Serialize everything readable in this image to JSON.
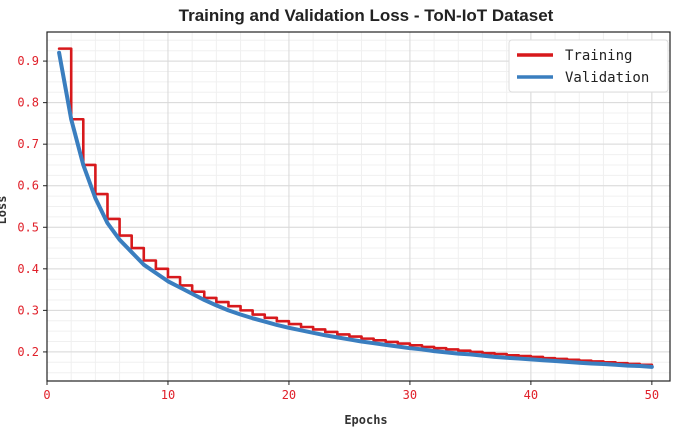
{
  "chart_data": {
    "type": "line",
    "title": "Training and Validation Loss - ToN-IoT Dataset",
    "xlabel": "Epochs",
    "ylabel": "Loss",
    "xlim": [
      0,
      51.5
    ],
    "ylim": [
      0.13,
      0.97
    ],
    "xticks": [
      0,
      10,
      20,
      30,
      40,
      50
    ],
    "yticks": [
      0.2,
      0.3,
      0.4,
      0.5,
      0.6,
      0.7,
      0.8,
      0.9
    ],
    "grid": true,
    "legend_position": "top-right",
    "series": [
      {
        "name": "Training",
        "color": "#d7191c",
        "step": true,
        "x": [
          1,
          2,
          3,
          4,
          5,
          6,
          7,
          8,
          9,
          10,
          11,
          12,
          13,
          14,
          15,
          16,
          17,
          18,
          19,
          20,
          21,
          22,
          23,
          24,
          25,
          26,
          27,
          28,
          29,
          30,
          31,
          32,
          33,
          34,
          35,
          36,
          37,
          38,
          39,
          40,
          41,
          42,
          43,
          44,
          45,
          46,
          47,
          48,
          49,
          50
        ],
        "values": [
          0.93,
          0.76,
          0.65,
          0.58,
          0.52,
          0.48,
          0.45,
          0.42,
          0.4,
          0.38,
          0.36,
          0.345,
          0.33,
          0.32,
          0.31,
          0.3,
          0.29,
          0.282,
          0.274,
          0.267,
          0.26,
          0.254,
          0.248,
          0.242,
          0.237,
          0.232,
          0.228,
          0.224,
          0.22,
          0.216,
          0.212,
          0.209,
          0.206,
          0.203,
          0.2,
          0.197,
          0.195,
          0.192,
          0.19,
          0.188,
          0.185,
          0.183,
          0.181,
          0.179,
          0.177,
          0.175,
          0.173,
          0.171,
          0.169,
          0.167
        ]
      },
      {
        "name": "Validation",
        "color": "#3a7ebf",
        "step": false,
        "x": [
          1,
          2,
          3,
          4,
          5,
          6,
          7,
          8,
          9,
          10,
          11,
          12,
          13,
          14,
          15,
          16,
          17,
          18,
          19,
          20,
          21,
          22,
          23,
          24,
          25,
          26,
          27,
          28,
          29,
          30,
          31,
          32,
          33,
          34,
          35,
          36,
          37,
          38,
          39,
          40,
          41,
          42,
          43,
          44,
          45,
          46,
          47,
          48,
          49,
          50
        ],
        "values": [
          0.92,
          0.76,
          0.65,
          0.57,
          0.51,
          0.47,
          0.44,
          0.41,
          0.39,
          0.37,
          0.355,
          0.34,
          0.325,
          0.312,
          0.3,
          0.29,
          0.281,
          0.273,
          0.265,
          0.258,
          0.252,
          0.246,
          0.24,
          0.235,
          0.23,
          0.225,
          0.221,
          0.217,
          0.213,
          0.209,
          0.206,
          0.202,
          0.199,
          0.196,
          0.194,
          0.191,
          0.188,
          0.186,
          0.184,
          0.182,
          0.18,
          0.178,
          0.176,
          0.174,
          0.172,
          0.171,
          0.169,
          0.167,
          0.166,
          0.164
        ]
      }
    ]
  }
}
